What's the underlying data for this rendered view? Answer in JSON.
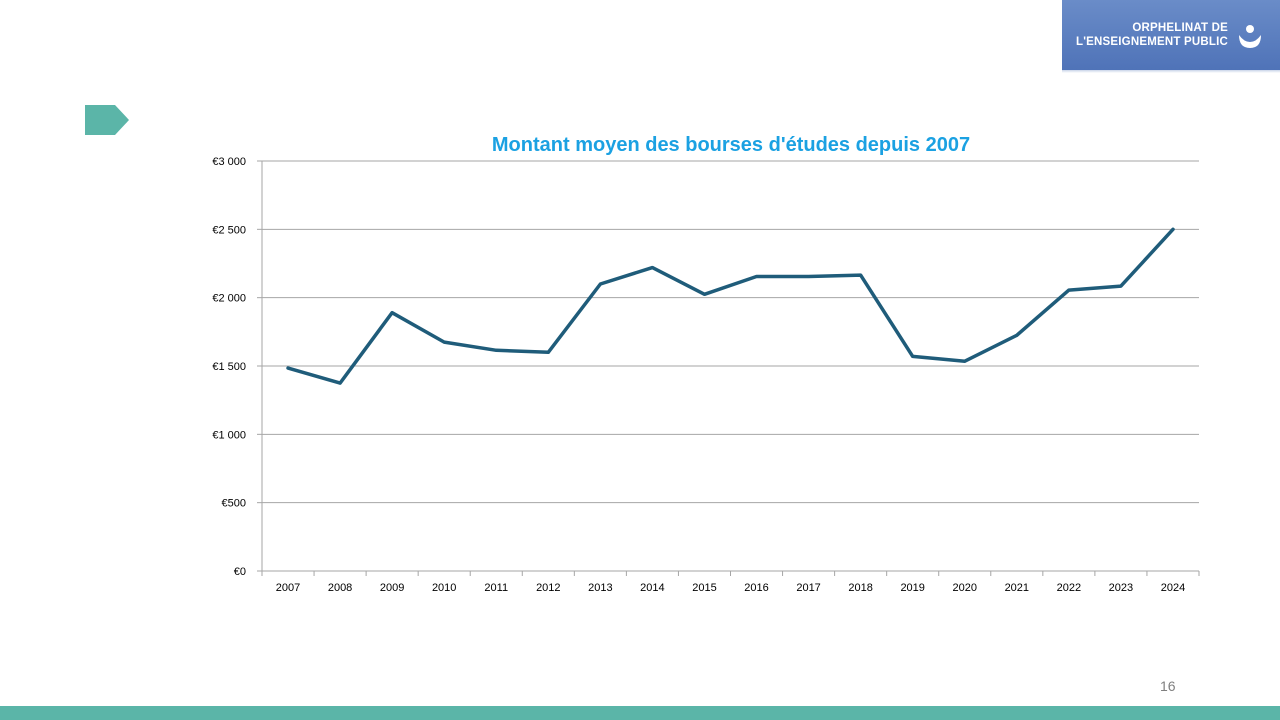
{
  "logo": {
    "line1": "ORPHELINAT DE",
    "line2": "L'ENSEIGNEMENT PUBLIC",
    "icon": "hands-logo-icon"
  },
  "colors": {
    "title": "#1ba1e2",
    "series": "#1f5c7a",
    "accent": "#5bb5a8",
    "logo_bg": "#5a7fc0"
  },
  "page_number": "16",
  "chart_data": {
    "type": "line",
    "title": "Montant moyen des bourses d'études depuis 2007",
    "xlabel": "",
    "ylabel": "",
    "categories": [
      "2007",
      "2008",
      "2009",
      "2010",
      "2011",
      "2012",
      "2013",
      "2014",
      "2015",
      "2016",
      "2017",
      "2018",
      "2019",
      "2020",
      "2021",
      "2022",
      "2023",
      "2024"
    ],
    "series": [
      {
        "values": [
          1485,
          1375,
          1890,
          1675,
          1615,
          1600,
          2100,
          2220,
          2025,
          2155,
          2155,
          2165,
          1570,
          1535,
          1725,
          2055,
          2085,
          2500
        ]
      }
    ],
    "ylim": [
      0,
      3000
    ],
    "yticks": [
      {
        "value": 0,
        "label": "€0"
      },
      {
        "value": 500,
        "label": "€500"
      },
      {
        "value": 1000,
        "label": "€1 000"
      },
      {
        "value": 1500,
        "label": "€1 500"
      },
      {
        "value": 2000,
        "label": "€2 000"
      },
      {
        "value": 2500,
        "label": "€2 500"
      },
      {
        "value": 3000,
        "label": "€3 000"
      }
    ],
    "grid": true,
    "legend": "none"
  }
}
